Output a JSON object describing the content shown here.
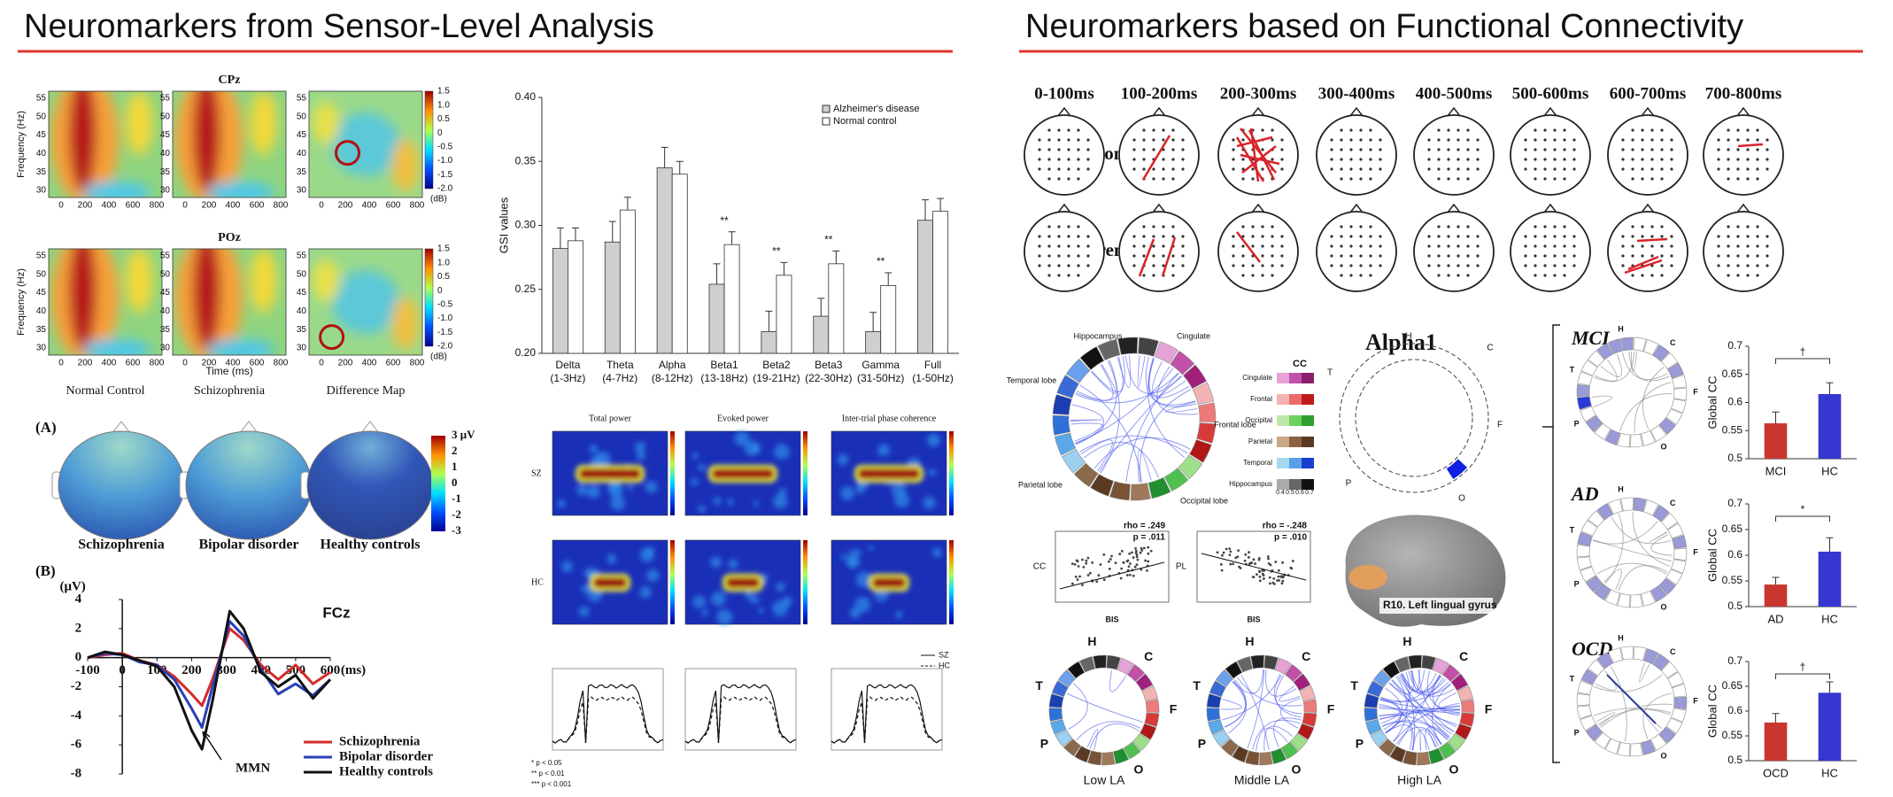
{
  "headings": [
    "Neuromarkers from Sensor-Level Analysis",
    "Neuromarkers based on Functional Connectivity"
  ],
  "sensor": {
    "heatmap_titles": [
      "CPz",
      "POz"
    ],
    "heatmap_ylabel": "Frequency (Hz)",
    "heatmap_xlabel": "Time (ms)",
    "heatmap_yticks": [
      "55",
      "50",
      "45",
      "40",
      "35",
      "30"
    ],
    "heatmap_xticks": [
      "0",
      "200",
      "400",
      "600",
      "800"
    ],
    "colorbar_ticks": [
      "1.5",
      "1.0",
      "0.5",
      "0",
      "-0.5",
      "-1.0",
      "-1.5",
      "-2.0"
    ],
    "colorbar_unit": "(dB)",
    "columns": [
      "Normal Control",
      "Schizophrenia",
      "Difference Map"
    ],
    "panel_labels": [
      "(A)",
      "(B)"
    ],
    "topo_labels": [
      "Schizophrenia",
      "Bipolar disorder",
      "Healthy controls"
    ],
    "topo_colorbar": [
      "3 μV",
      "2",
      "1",
      "0",
      "-1",
      "-2",
      "-3"
    ]
  },
  "tf": {
    "titles": [
      "Total power",
      "Evoked power",
      "Inter-trial phase coherence"
    ],
    "rows": [
      "SZ",
      "HC"
    ],
    "legend": [
      "SZ",
      "HC"
    ],
    "pvalues": [
      "* p < 0.05",
      "** p < 0.01",
      "*** p < 0.001"
    ]
  },
  "connectivity": {
    "windows": [
      "0-100ms",
      "100-200ms",
      "200-300ms",
      "300-400ms",
      "400-500ms",
      "500-600ms",
      "600-700ms",
      "700-800ms"
    ],
    "rows": [
      "Normal Control",
      "Schizophrenia"
    ]
  },
  "connectome": {
    "lobes": [
      "Hippocampus",
      "Cingulate",
      "Temporal lobe",
      "Frontal lobe",
      "Parietal lobe",
      "Occipital lobe"
    ],
    "legend_title": "CC",
    "regions": [
      "Cingulate",
      "Frontal",
      "Occipital",
      "Parietal",
      "Temporal",
      "Hippocampus"
    ],
    "scale": [
      "0.4",
      "0.5",
      "0.6",
      "0.7"
    ],
    "title": "Alpha1",
    "ring_letters": [
      "H",
      "C",
      "F",
      "O",
      "P",
      "T"
    ],
    "region_label": "R10. Left lingual gyrus",
    "scatter": [
      {
        "ylabel": "CC",
        "xlabel": "BIS",
        "rho": "rho = .249",
        "p": "p = .011"
      },
      {
        "ylabel": "PL",
        "xlabel": "BIS",
        "rho": "rho = -.248",
        "p": "p = .010"
      }
    ],
    "la_labels": [
      "Low LA",
      "Middle LA",
      "High LA"
    ]
  },
  "chart_data": [
    {
      "type": "bar",
      "ylabel": "GSI values",
      "categories": [
        [
          "Delta",
          "(1-3Hz)"
        ],
        [
          "Theta",
          "(4-7Hz)"
        ],
        [
          "Alpha",
          "(8-12Hz)"
        ],
        [
          "Beta1",
          "(13-18Hz)"
        ],
        [
          "Beta2",
          "(19-21Hz)"
        ],
        [
          "Beta3",
          "(22-30Hz)"
        ],
        [
          "Gamma",
          "(31-50Hz)"
        ],
        [
          "Full",
          "(1-50Hz)"
        ]
      ],
      "series": [
        {
          "name": "Alzheimer's disease",
          "color": "#cfcfcf",
          "values": [
            0.282,
            0.287,
            0.345,
            0.254,
            0.217,
            0.229,
            0.217,
            0.304
          ],
          "errors": [
            0.016,
            0.016,
            0.016,
            0.016,
            0.016,
            0.014,
            0.015,
            0.016
          ]
        },
        {
          "name": "Normal control",
          "color": "#ffffff",
          "values": [
            0.288,
            0.312,
            0.34,
            0.285,
            0.261,
            0.27,
            0.253,
            0.311
          ],
          "errors": [
            0.01,
            0.01,
            0.01,
            0.01,
            0.01,
            0.01,
            0.01,
            0.01
          ]
        }
      ],
      "annotations": [
        {
          "text": "**",
          "x": "Beta1"
        },
        {
          "text": "**",
          "x": "Beta2"
        },
        {
          "text": "**",
          "x": "Beta3"
        },
        {
          "text": "**",
          "x": "Gamma"
        }
      ],
      "ylim": [
        0.2,
        0.4
      ],
      "yticks": [
        {
          "value": 0.2,
          "label": "0.20"
        },
        {
          "value": 0.25,
          "label": "0.25"
        },
        {
          "value": 0.3,
          "label": "0.30"
        },
        {
          "value": 0.35,
          "label": "0.35"
        },
        {
          "value": 0.4,
          "label": "0.40"
        }
      ],
      "legend": "top-right"
    },
    {
      "type": "line",
      "title": "FCz",
      "ylabel": "(μV)",
      "xlabel": "(ms)",
      "annotation": "MMN",
      "x": [
        -100,
        -50,
        0,
        50,
        100,
        150,
        200,
        230,
        260,
        310,
        350,
        400,
        450,
        500,
        550,
        600
      ],
      "series": [
        {
          "name": "Schizophrenia",
          "color": "#d62a2a",
          "values": [
            0,
            0.2,
            0.3,
            -0.2,
            -0.5,
            -1.3,
            -2.5,
            -3.3,
            -1.5,
            2.0,
            1.2,
            -0.5,
            -1.5,
            -0.5,
            -1.8,
            -1.0
          ]
        },
        {
          "name": "Bipolar disorder",
          "color": "#2a3fb8",
          "values": [
            0,
            0.3,
            0.2,
            -0.3,
            -0.5,
            -1.5,
            -3.5,
            -4.8,
            -2.0,
            2.5,
            1.5,
            -0.8,
            -2.5,
            -1.8,
            -2.6,
            -1.5
          ]
        },
        {
          "name": "Healthy controls",
          "color": "#111111",
          "values": [
            0,
            0.4,
            0.2,
            -0.2,
            -0.6,
            -2.0,
            -5.0,
            -6.3,
            -3.0,
            3.2,
            2.0,
            -1.0,
            -2.0,
            -1.2,
            -2.8,
            -1.5
          ]
        }
      ],
      "xlim": [
        -100,
        600
      ],
      "xticks": [
        -100,
        0,
        100,
        200,
        300,
        400,
        500,
        600
      ],
      "ylim": [
        -8,
        4
      ],
      "yticks": [
        4,
        2,
        0,
        -2,
        -4,
        -6,
        -8
      ],
      "legend": "bottom-right"
    },
    {
      "type": "bar",
      "title": "MCI",
      "ylabel": "Global CC",
      "categories": [
        "MCI",
        "HC"
      ],
      "values": [
        0.563,
        0.615
      ],
      "errors": [
        0.02,
        0.02
      ],
      "colors": [
        "#c8372f",
        "#3636d0"
      ],
      "annotation": "†",
      "ylim": [
        0.5,
        0.7
      ],
      "yticks": [
        0.5,
        0.55,
        0.6,
        0.65,
        0.7
      ]
    },
    {
      "type": "bar",
      "title": "AD",
      "ylabel": "Global CC",
      "categories": [
        "AD",
        "HC"
      ],
      "values": [
        0.543,
        0.607
      ],
      "errors": [
        0.014,
        0.027
      ],
      "colors": [
        "#c8372f",
        "#3636d0"
      ],
      "annotation": "*",
      "ylim": [
        0.5,
        0.7
      ],
      "yticks": [
        0.5,
        0.55,
        0.6,
        0.65,
        0.7
      ]
    },
    {
      "type": "bar",
      "title": "OCD",
      "ylabel": "Global CC",
      "categories": [
        "OCD",
        "HC"
      ],
      "values": [
        0.577,
        0.637
      ],
      "errors": [
        0.018,
        0.022
      ],
      "colors": [
        "#c8372f",
        "#3636d0"
      ],
      "annotation": "†",
      "ylim": [
        0.5,
        0.7
      ],
      "yticks": [
        0.5,
        0.55,
        0.6,
        0.65,
        0.7
      ]
    }
  ]
}
